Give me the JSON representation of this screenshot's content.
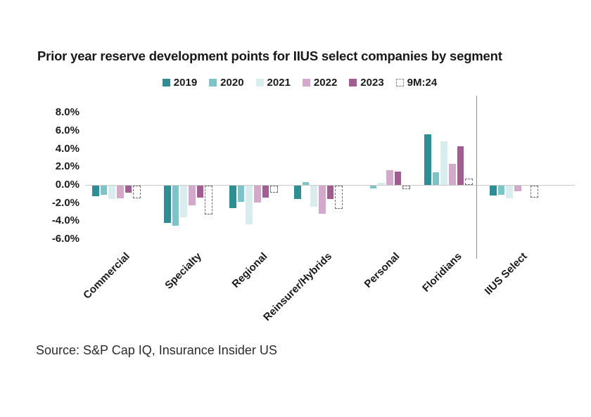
{
  "title": "Prior year reserve development points for IIUS select companies by segment",
  "source": "Source: S&P Cap IQ, Insurance Insider US",
  "legend": [
    {
      "label": "2019",
      "color": "#2E8E96",
      "swatch": "solid"
    },
    {
      "label": "2020",
      "color": "#7BC4C8",
      "swatch": "solid"
    },
    {
      "label": "2021",
      "color": "#DAEDEE",
      "swatch": "solid"
    },
    {
      "label": "2022",
      "color": "#D4A8CA",
      "swatch": "solid"
    },
    {
      "label": "2023",
      "color": "#A35C8F",
      "swatch": "solid"
    },
    {
      "label": "9M:24",
      "color": "#8F8F8F",
      "swatch": "dashed"
    }
  ],
  "chart_data": {
    "type": "bar",
    "title": "Prior year reserve development points for IIUS select companies by segment",
    "unit": "percentage points",
    "categories": [
      "Commercial",
      "Specialty",
      "Regional",
      "Reinsurer/Hybrids",
      "Personal",
      "Floridians",
      "IIUS Select"
    ],
    "series": [
      {
        "name": "2019",
        "style": "solid",
        "color": "#2E8E96",
        "values": [
          -1.2,
          -4.1,
          -2.5,
          -1.5,
          0,
          5.6,
          -1.1
        ]
      },
      {
        "name": "2020",
        "style": "solid",
        "color": "#7BC4C8",
        "values": [
          -1.0,
          -4.4,
          -1.8,
          0.3,
          -0.3,
          1.4,
          -1.0
        ]
      },
      {
        "name": "2021",
        "style": "solid",
        "color": "#DAEDEE",
        "values": [
          -1.5,
          -3.5,
          -4.3,
          -2.3,
          0.2,
          4.8,
          -1.4
        ]
      },
      {
        "name": "2022",
        "style": "solid",
        "color": "#D4A8CA",
        "values": [
          -1.4,
          -2.2,
          -1.9,
          -3.1,
          1.6,
          2.3,
          -0.6
        ]
      },
      {
        "name": "2023",
        "style": "solid",
        "color": "#A35C8F",
        "values": [
          -0.8,
          -1.3,
          -1.3,
          -1.5,
          1.5,
          4.3,
          0
        ]
      },
      {
        "name": "9M:24",
        "style": "dashed",
        "color": "#6F6F6F",
        "values": [
          -1.4,
          -3.2,
          -0.8,
          -2.6,
          -0.4,
          0.7,
          -1.3
        ]
      }
    ],
    "yticks": [
      "8.0%",
      "6.0%",
      "4.0%",
      "2.0%",
      "0.0%",
      "-2.0%",
      "-4.0%",
      "-6.0%"
    ],
    "ylim": [
      -6.9,
      8.9
    ],
    "grid": "zero-baseline-only",
    "legend_position": "top",
    "divider_before_category": "IIUS Select"
  }
}
